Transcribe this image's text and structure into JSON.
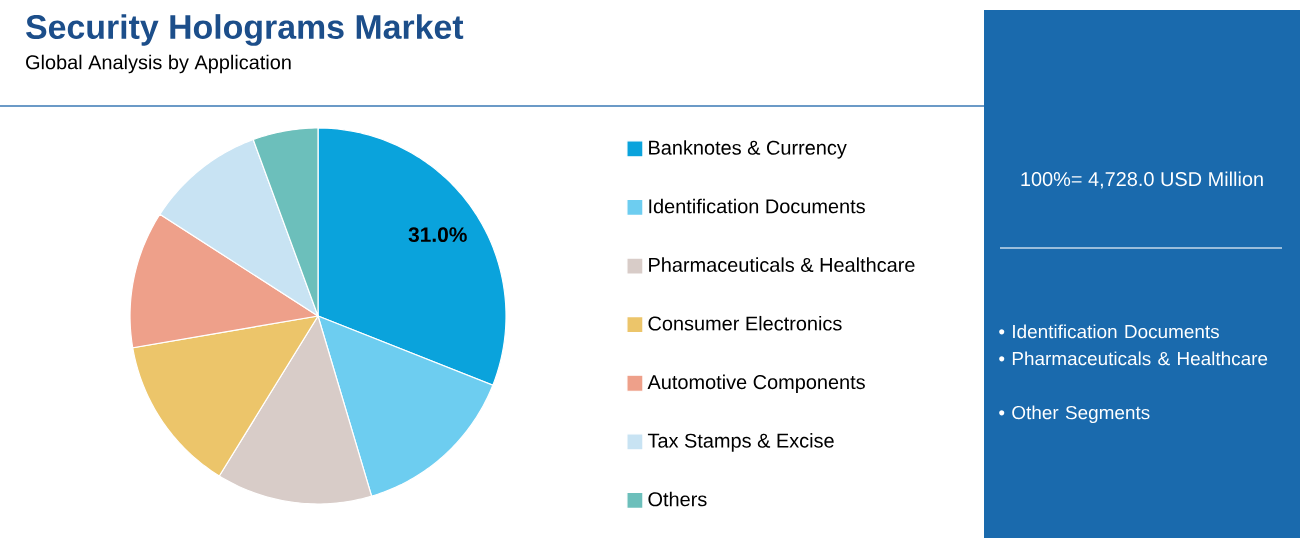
{
  "chart_data": {
    "type": "pie",
    "title": "Security Holograms Market",
    "subtitle": "Global Analysis by Application",
    "categories": [
      "Banknotes & Currency",
      "Identification Documents",
      "Pharmaceuticals & Healthcare",
      "Consumer Electronics",
      "Automotive Components",
      "Tax Stamps & Excise",
      "Others"
    ],
    "values": [
      31.0,
      14.4,
      13.4,
      13.5,
      11.8,
      10.3,
      5.6
    ],
    "colors": [
      "#0aa3dc",
      "#6dcdf0",
      "#d8ccc8",
      "#ecc56a",
      "#eea08a",
      "#c8e3f3",
      "#6cbfbb"
    ],
    "value_labels": [
      "31.0%",
      null,
      null,
      null,
      null,
      null,
      null
    ],
    "legend": "right",
    "annotations": [
      "100%= 4,728.0 USD Million",
      "• Identification Documents",
      "• Pharmaceuticals & Healthcare",
      "• Other Segments"
    ]
  }
}
